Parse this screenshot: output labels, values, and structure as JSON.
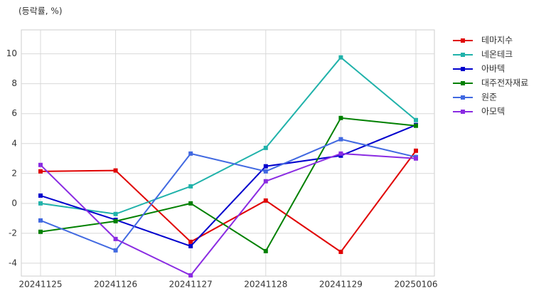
{
  "chart_data": {
    "type": "line",
    "y_label": "(등락률, %)",
    "categories": [
      "20241125",
      "20241126",
      "20241127",
      "20241128",
      "20241129",
      "20250106"
    ],
    "series": [
      {
        "name": "테마지수",
        "color": "#e00000",
        "values": [
          2.14,
          2.2,
          -2.57,
          0.19,
          -3.24,
          3.52
        ]
      },
      {
        "name": "네온테크",
        "color": "#20b2aa",
        "values": [
          0,
          -0.71,
          1.14,
          3.71,
          9.76,
          5.57
        ]
      },
      {
        "name": "아바텍",
        "color": "#0000cd",
        "values": [
          0.52,
          -1.1,
          -2.86,
          2.48,
          3.19,
          5.24
        ]
      },
      {
        "name": "대주전자재료",
        "color": "#008000",
        "values": [
          -1.9,
          -1.19,
          0,
          -3.19,
          5.71,
          5.19
        ]
      },
      {
        "name": "원준",
        "color": "#4169e1",
        "values": [
          -1.14,
          -3.14,
          3.33,
          2.14,
          4.29,
          3.1
        ]
      },
      {
        "name": "아모텍",
        "color": "#8a2be2",
        "values": [
          2.57,
          -2.38,
          -4.81,
          1.48,
          3.33,
          3.0
        ]
      }
    ],
    "ylim": [
      -4.86,
      11.6
    ],
    "yticks": [
      -4,
      -2,
      0,
      2,
      4,
      6,
      8,
      10
    ],
    "grid": true,
    "legend": "outside-right"
  }
}
